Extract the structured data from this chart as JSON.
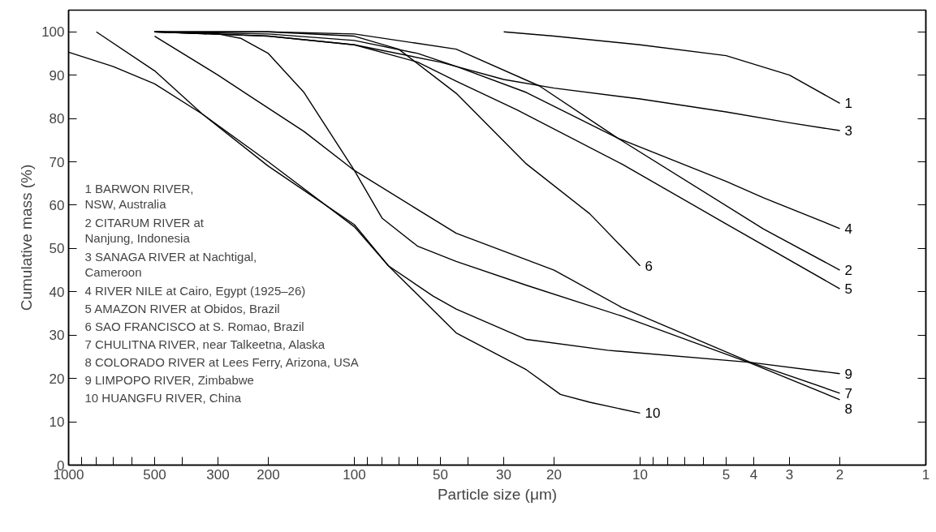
{
  "chart_data": {
    "type": "line",
    "xlabel": "Particle size (μm)",
    "ylabel": "Cumulative mass (%)",
    "log": "x",
    "xlim": [
      1000,
      1
    ],
    "ylim": [
      0,
      105
    ],
    "xticks": [
      1000,
      {
        "value": 900,
        "label": null
      },
      {
        "value": 800,
        "label": null
      },
      {
        "value": 700,
        "label": null
      },
      {
        "value": 600,
        "label": null
      },
      500,
      {
        "value": 400,
        "label": null
      },
      300,
      200,
      100,
      {
        "value": 90,
        "label": null
      },
      {
        "value": 80,
        "label": null
      },
      {
        "value": 70,
        "label": null
      },
      {
        "value": 60,
        "label": null
      },
      50,
      {
        "value": 40,
        "label": null
      },
      30,
      20,
      10,
      {
        "value": 9,
        "label": null
      },
      {
        "value": 8,
        "label": null
      },
      {
        "value": 7,
        "label": null
      },
      {
        "value": 6,
        "label": null
      },
      5,
      4,
      3,
      2,
      1
    ],
    "yticks": [
      0,
      10,
      20,
      30,
      40,
      50,
      60,
      70,
      80,
      90,
      100
    ],
    "grid": false,
    "marker": "none",
    "line_style": "solid",
    "series": [
      {
        "name": "1",
        "color": "#000000",
        "x": [
          30,
          20,
          10,
          5,
          3,
          2
        ],
        "values": [
          100,
          99,
          97,
          94.5,
          90,
          83.5
        ]
      },
      {
        "name": "2",
        "color": "#000000",
        "x": [
          500,
          200,
          100,
          44,
          22.5,
          12,
          3.7,
          2
        ],
        "values": [
          100,
          100,
          99.5,
          96,
          87.5,
          75.5,
          54.5,
          45
        ]
      },
      {
        "name": "3",
        "color": "#000000",
        "x": [
          500,
          200,
          100,
          50,
          30,
          20,
          10,
          5,
          3,
          2
        ],
        "values": [
          100,
          99,
          97,
          93,
          89,
          87,
          84.5,
          81.5,
          79,
          77.2
        ]
      },
      {
        "name": "4",
        "color": "#000000",
        "x": [
          500,
          200,
          100,
          60,
          44,
          25,
          12,
          5,
          3.7,
          2
        ],
        "values": [
          100,
          99.5,
          98,
          95,
          92,
          86,
          75.5,
          65.5,
          61.7,
          54.6
        ]
      },
      {
        "name": "5",
        "color": "#000000",
        "x": [
          500,
          200,
          100,
          60,
          44,
          27,
          11.6,
          5.1,
          2
        ],
        "values": [
          100,
          99,
          97,
          93,
          88.6,
          82,
          69.5,
          56,
          40.7
        ]
      },
      {
        "name": "6",
        "color": "#000000",
        "x": [
          500,
          200,
          100,
          70,
          44,
          25,
          15,
          10
        ],
        "values": [
          100,
          100,
          99,
          96,
          85.8,
          69.5,
          58,
          46
        ]
      },
      {
        "name": "7",
        "color": "#000000",
        "x": [
          500,
          300,
          230,
          150,
          100,
          44,
          20,
          11.6,
          4.1,
          2
        ],
        "values": [
          99,
          90,
          85,
          77,
          68,
          53.5,
          45,
          36.4,
          23.7,
          16.6
        ]
      },
      {
        "name": "8",
        "color": "#000000",
        "x": [
          500,
          300,
          250,
          200,
          150,
          100,
          80,
          60,
          44,
          25,
          11.6,
          4.1,
          2
        ],
        "values": [
          100,
          99.5,
          98.5,
          95,
          86,
          68,
          57,
          50.5,
          47,
          41.5,
          34.4,
          23.5,
          15.1
        ]
      },
      {
        "name": "9",
        "color": "#000000",
        "x": [
          800,
          500,
          340,
          200,
          100,
          76,
          53,
          44,
          25,
          13,
          4.1,
          2
        ],
        "values": [
          100,
          91,
          81,
          70,
          55,
          46,
          39,
          36,
          29,
          26.5,
          23.7,
          21.1
        ]
      },
      {
        "name": "10",
        "color": "#000000",
        "x": [
          1000,
          700,
          500,
          340,
          200,
          100,
          76,
          44,
          25,
          19,
          15,
          10
        ],
        "values": [
          95.3,
          92,
          88,
          81,
          69,
          55.5,
          46,
          30.5,
          22,
          16.3,
          14.5,
          12
        ]
      }
    ],
    "annotations": [
      "1  BARWON RIVER,\n     NSW, Australia",
      "2  CITARUM RIVER at\n     Nanjung, Indonesia",
      "3  SANAGA RIVER at Nachtigal,\n     Cameroon",
      "4  RIVER NILE at Cairo, Egypt (1925–26)",
      "5  AMAZON RIVER at Obidos, Brazil",
      "6  SAO FRANCISCO at S. Romao, Brazil",
      "7  CHULITNA RIVER, near Talkeetna, Alaska",
      "8  COLORADO RIVER at Lees Ferry, Arizona, USA",
      "9  LIMPOPO RIVER, Zimbabwe",
      "10  HUANGFU RIVER, China"
    ]
  }
}
